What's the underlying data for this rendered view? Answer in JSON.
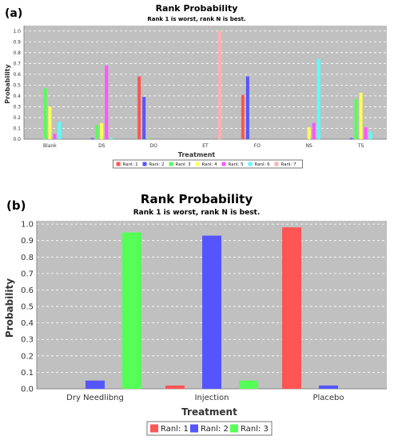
{
  "panels": [
    {
      "tag": "(a)"
    },
    {
      "tag": "(b)"
    }
  ],
  "colors": {
    "plot_bg": "#c0c0c0",
    "grid": "#ffffff",
    "legend_border": "#555555"
  },
  "chart_data": [
    {
      "type": "bar",
      "title": "Rank Probability",
      "subtitle": "Rank 1 is worst, rank N is best.",
      "xlabel": "Treatment",
      "ylabel": "Probability",
      "ylim": [
        0,
        1.05
      ],
      "yticks": [
        "0.0",
        "0.1",
        "0.2",
        "0.3",
        "0.4",
        "0.5",
        "0.6",
        "0.7",
        "0.8",
        "0.9",
        "1.0"
      ],
      "grid": true,
      "legend_position": "bottom",
      "categories": [
        "Blank",
        "DS",
        "DO",
        "ET",
        "FO",
        "NS",
        "TS"
      ],
      "series": [
        {
          "name": "Ranl: 1",
          "color": "#ff5555",
          "values": [
            0.0,
            0.0,
            0.58,
            0.0,
            0.41,
            0.0,
            0.0
          ]
        },
        {
          "name": "Ranl: 2",
          "color": "#5555ff",
          "values": [
            0.0,
            0.01,
            0.39,
            0.0,
            0.58,
            0.0,
            0.01
          ]
        },
        {
          "name": "Ranl: 3",
          "color": "#55ff55",
          "values": [
            0.47,
            0.13,
            0.01,
            0.0,
            0.0,
            0.0,
            0.37
          ]
        },
        {
          "name": "Ranl: 4",
          "color": "#ffff55",
          "values": [
            0.3,
            0.15,
            0.0,
            0.0,
            0.0,
            0.11,
            0.43
          ]
        },
        {
          "name": "Ranl: 5",
          "color": "#ff55ff",
          "values": [
            0.05,
            0.68,
            0.0,
            0.0,
            0.0,
            0.15,
            0.11
          ]
        },
        {
          "name": "Ranl: 6",
          "color": "#55ffff",
          "values": [
            0.16,
            0.01,
            0.0,
            0.0,
            0.0,
            0.74,
            0.07
          ]
        },
        {
          "name": "Ranl: 7",
          "color": "#ffafaf",
          "values": [
            0.0,
            0.0,
            0.0,
            1.0,
            0.0,
            0.0,
            0.0
          ]
        }
      ]
    },
    {
      "type": "bar",
      "title": "Rank Probability",
      "subtitle": "Rank 1 is worst, rank N is best.",
      "xlabel": "Treatment",
      "ylabel": "Probability",
      "ylim": [
        0,
        1.02
      ],
      "yticks": [
        "0.0",
        "0.1",
        "0.2",
        "0.3",
        "0.4",
        "0.5",
        "0.6",
        "0.7",
        "0.8",
        "0.9",
        "1.0"
      ],
      "grid": true,
      "legend_position": "bottom",
      "categories": [
        "Dry Needlibng",
        "Injection",
        "Placebo"
      ],
      "series": [
        {
          "name": "Ranl: 1",
          "color": "#ff5555",
          "values": [
            0.0,
            0.02,
            0.98
          ]
        },
        {
          "name": "Ranl: 2",
          "color": "#5555ff",
          "values": [
            0.05,
            0.93,
            0.02
          ]
        },
        {
          "name": "Ranl: 3",
          "color": "#55ff55",
          "values": [
            0.95,
            0.05,
            0.0
          ]
        }
      ]
    }
  ]
}
